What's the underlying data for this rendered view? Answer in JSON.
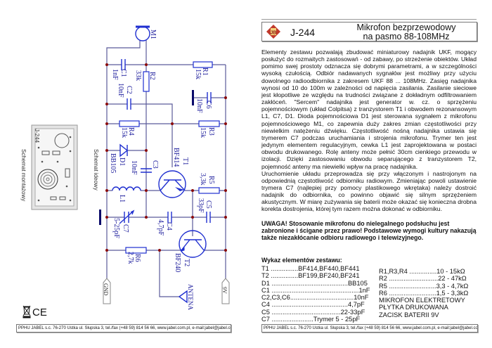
{
  "header": {
    "code": "J-244",
    "title_line1": "Mikrofon bezprzewodowy",
    "title_line2": "na pasmo 88-108MHz",
    "logo_text": "JB"
  },
  "description": {
    "paragraph1": "Elementy zestawu pozwalają zbudować miniaturowy nadajnik UKF, mogący posłużyć do rozmaitych zastosowań - od zabawy, po strzeżenie obiektów. Układ pomimo swej prostoty odznacza się dobrymi parametrami, a w szczególności wysoką czułością. Odbiór nadawanych sygnałów jest możliwy przy użyciu dowolnego radioodbiornika z zakresem UKF 88 ... 108MHz. Zasięg nadajnika wynosi od 10 do 100m w zależności od napięcia zasilania. Zasilanie sieciowe jest kłopotliwe ze względu na trudności związane z dokładnym odfiltrowaniem zakłóceń. \"Sercem\" nadajnika jest generator w. cz. o sprzężeniu pojemnościowym (układ Colpitsa) z tranzystorem T1 i obwodem rezonansowym L1, C7, D1. Dioda pojemnościowa D1 jest sterowana sygnałem z mikrofonu pojemnościowego M1, co zapewnia duży zakres zmian częstotliwości przy niewielkim natężeniu dźwięku. Częstotliwość nośną nadajnika ustawia się trymerem C7 podczas uruchamiania i strojenia mikrofonu. Trymer ten jest jedynym elementem regulacyjnym, cewka L1 jest zaprojektowana w postaci obwodu drukowanego. Rolę anteny może pełnić 30cm cienkiego przewodu w izolacji. Dzięki zastosowaniu obwodu separującego z tranzystorem T2, pojemność anteny ma niewielki wpływ na pracę nadajnika.",
    "paragraph2": "Uruchomienie układu przeprowadza się przy włączonym i nastrojonym na odpowiednią częstotliwość odbiorniku radiowym. Zmieniając powoli ustawienie trymera C7 (najlepiej przy pomocy plastikowego wkrętaka) należy dostroić nadajnik do odbiornika, co powinno objawić się silnym sprzężeniem akustycznym. W miarę zużywania się baterii może okazać się konieczna drobna korekta dostrojenia, której tym razem można dokonać w odbiorniku.",
    "warning": "UWAGA! Stosowanie mikrofonu do nielegalnego podsłuchu jest zabronione i ścigane przez prawo! Podstawowe wymogi kultury nakazują także niezakłócanie odbioru radiowego i telewizyjnego."
  },
  "parts": {
    "heading": "Wykaz elementów zestawu:",
    "left": [
      "T1 ...............BF414,BF440,BF441",
      "T2 ...............BF199,BF240,BF241",
      "D1 ..........................................BB105",
      "C1 ................................................1nF",
      "C2,C3,C6...................................10nF",
      "C4 ..........................................4,7pF",
      "C5 ......................................22-33pF",
      "C7 .......................Trymer 5 - 25pF"
    ],
    "right": [
      "R1,R3,R4 ...............10 - 15kΩ",
      "R2 ...........................22 - 47kΩ",
      "R5 ..........................3,3 - 4,7kΩ",
      "R6 ..........................1,5 - 3,3kΩ",
      "MIKROFON ELEKTRETOWY",
      "PŁYTKA DRUKOWANA",
      "ZACISK BATERII 9V"
    ]
  },
  "schematic": {
    "caption": "Schemat ideowy",
    "assembly_caption": "Schemat montażowy",
    "assembly_code": "J-244",
    "labels": {
      "M1": "M1",
      "C1": "C1",
      "C1v": "1nF",
      "R2": "R2",
      "R2v": "33k",
      "R1": "R1",
      "R1v": "15k",
      "C2": "C2",
      "C2v": "10nF",
      "C6": "C6",
      "C6v": "10nF",
      "R4": "R4",
      "R4v": "15k",
      "R3": "R3",
      "R3v": "15k",
      "D1": "D1",
      "D1v": "BB105",
      "T1": "T1",
      "T1v": "BF414",
      "C3": "C3",
      "C3v": "10nF",
      "L1": "L1",
      "R5": "R5",
      "R5v": "3,3k",
      "C5": "C5",
      "C5v": "33pF",
      "C7": "C7",
      "C7v": "5-25pF",
      "C4": "C4",
      "C4v": "4,7pF",
      "R6": "R6",
      "R6v": "2,7k",
      "T2": "T2",
      "T2v": "BF240",
      "ANT": "ANTENA",
      "GND": "GND",
      "V9": "9V"
    }
  },
  "footer": {
    "left": "PPHU JABEL s.c. 76-270 Ustka ul. Słupska 3, tel./fax (+48 59) 814 56 66, www.jabel.com.pl, e-mail:jabel@jabel.com.pl",
    "right": "PPHU JABEL s.c. 76-270 Ustka ul. Słupska 3, tel./fax (+48 59) 814 56 66, www.jabel.com.pl, e-mail:jabel@jabel.com.pl"
  },
  "marks": {
    "ce": "CE",
    "weee": "weee-bin-icon"
  },
  "colors": {
    "schematic_parts": "#1f2fd0",
    "wires": "#5b5b9a",
    "nodes": "#8a0a0a",
    "logo": "#c0392b"
  }
}
